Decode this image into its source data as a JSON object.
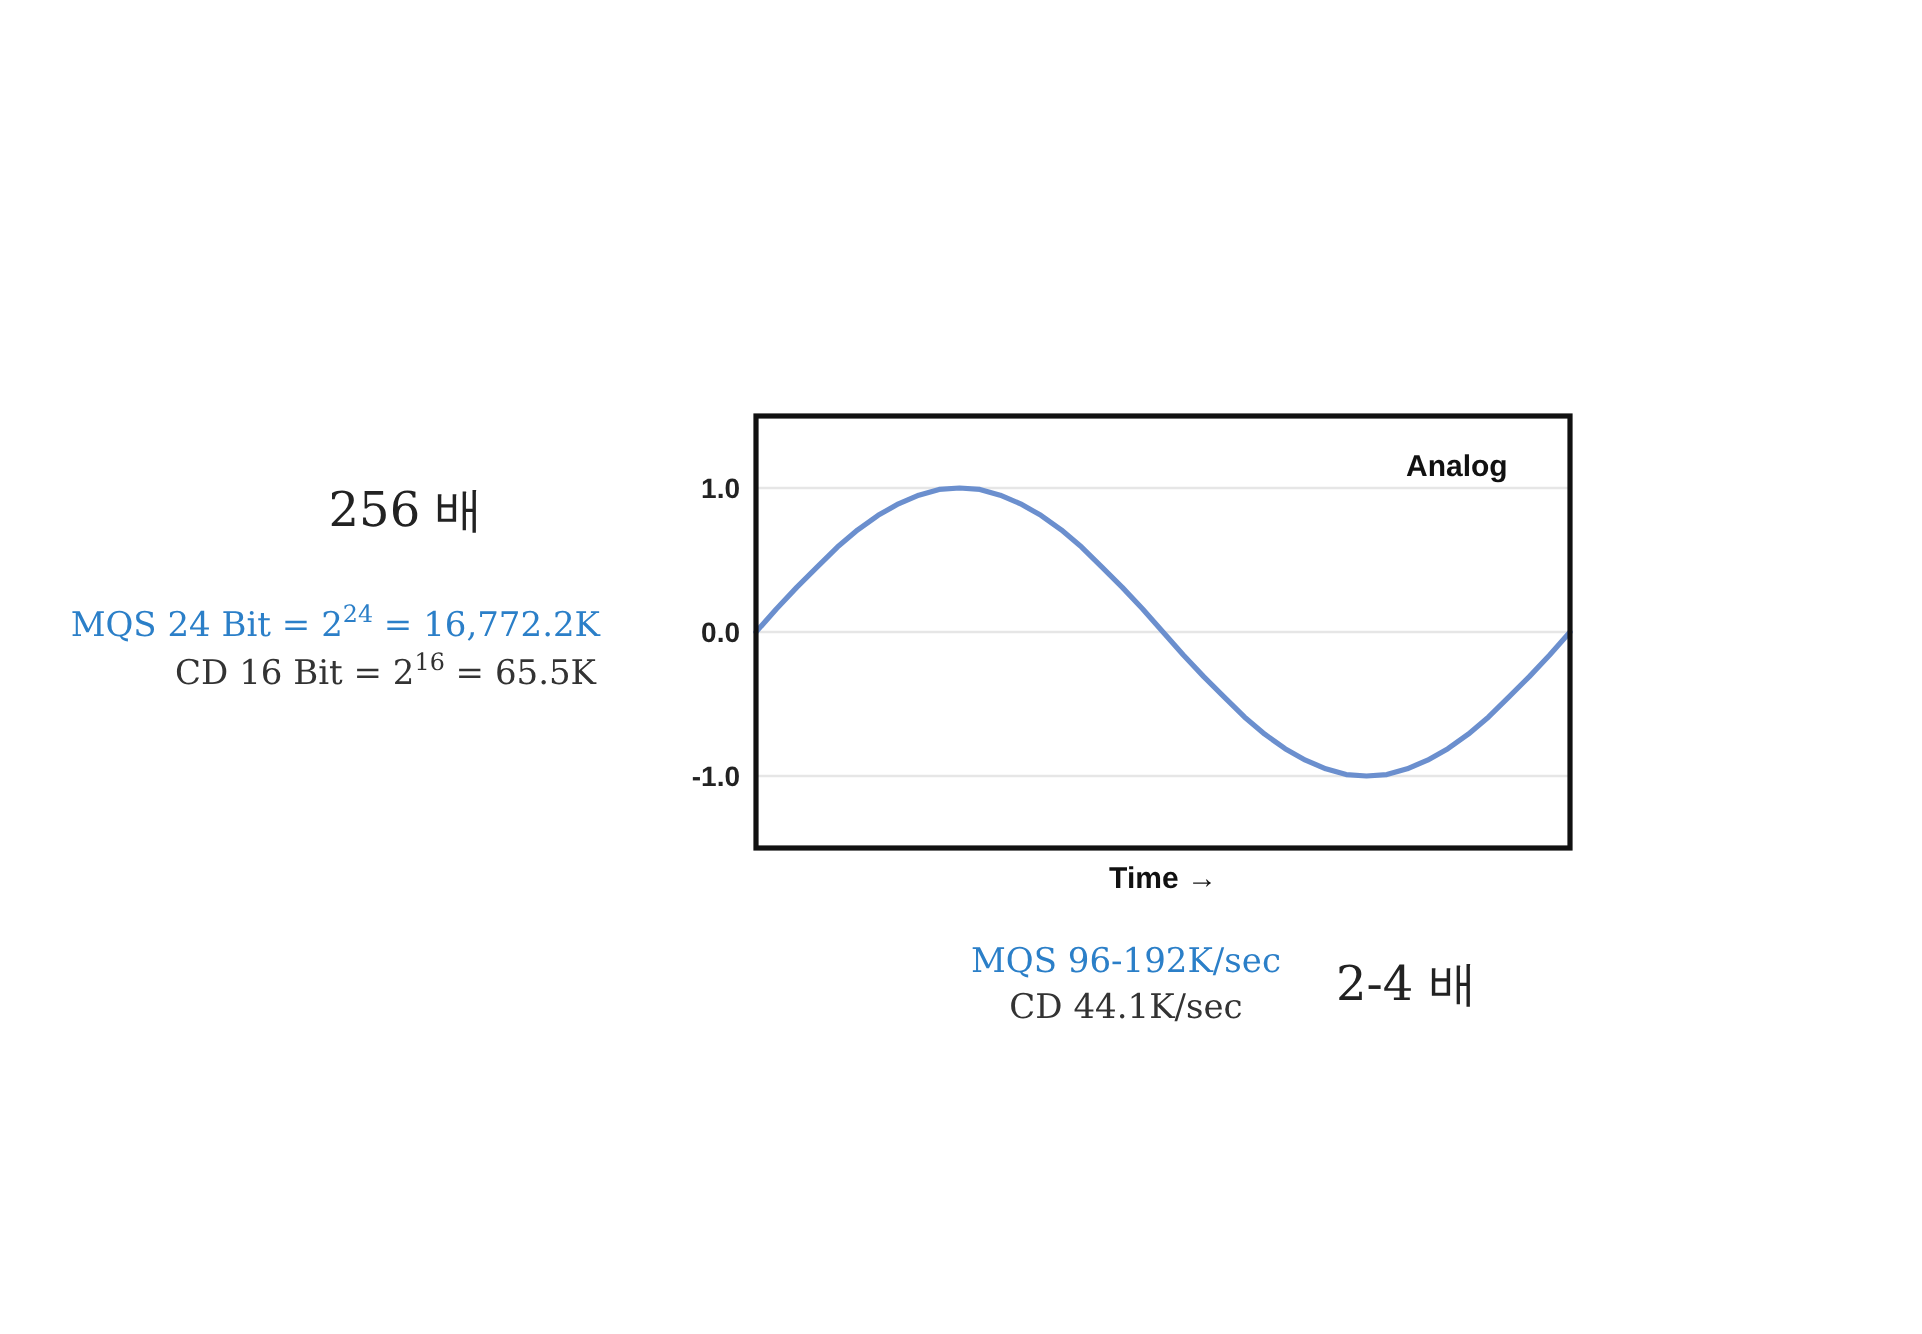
{
  "chart_data": {
    "type": "line",
    "xlabel": "Time →",
    "categories": [
      null,
      null,
      null,
      null,
      null,
      null,
      null,
      null,
      null,
      null,
      null,
      null,
      null,
      null,
      null,
      null,
      null,
      null,
      null,
      null,
      null,
      null,
      null,
      null,
      null,
      null,
      null,
      null,
      null,
      null,
      null,
      null,
      null,
      null,
      null,
      null,
      null,
      null,
      null,
      null,
      null
    ],
    "series": [
      {
        "color": "#6b8fce",
        "values": [
          0,
          0.16,
          0.31,
          0.45,
          0.59,
          0.71,
          0.81,
          0.89,
          0.95,
          0.99,
          1,
          0.99,
          0.95,
          0.89,
          0.81,
          0.71,
          0.59,
          0.45,
          0.31,
          0.16,
          0,
          -0.16,
          -0.31,
          -0.45,
          -0.59,
          -0.71,
          -0.81,
          -0.89,
          -0.95,
          -0.99,
          -1,
          -0.99,
          -0.95,
          -0.89,
          -0.81,
          -0.71,
          -0.59,
          -0.45,
          -0.31,
          -0.16,
          0
        ]
      }
    ],
    "ylim": [
      -1.5,
      1.5
    ],
    "yticks": [
      {
        "value": 1,
        "label": "1.0"
      },
      {
        "value": 0,
        "label": "0.0"
      },
      {
        "value": -1,
        "label": "-1.0"
      }
    ],
    "tick_labels": "y",
    "grid": "y",
    "marker": "none",
    "line_style": "solid",
    "annotations": [
      "256 배",
      "MQS 24 Bit = 2$^{24}$ = 16,772.2K",
      "CD 16 Bit = 2$^{16}$ = 65.5K",
      "MQS 96-192K/sec",
      "CD 44.1K/sec",
      "2-4 배",
      "Analog"
    ]
  }
}
